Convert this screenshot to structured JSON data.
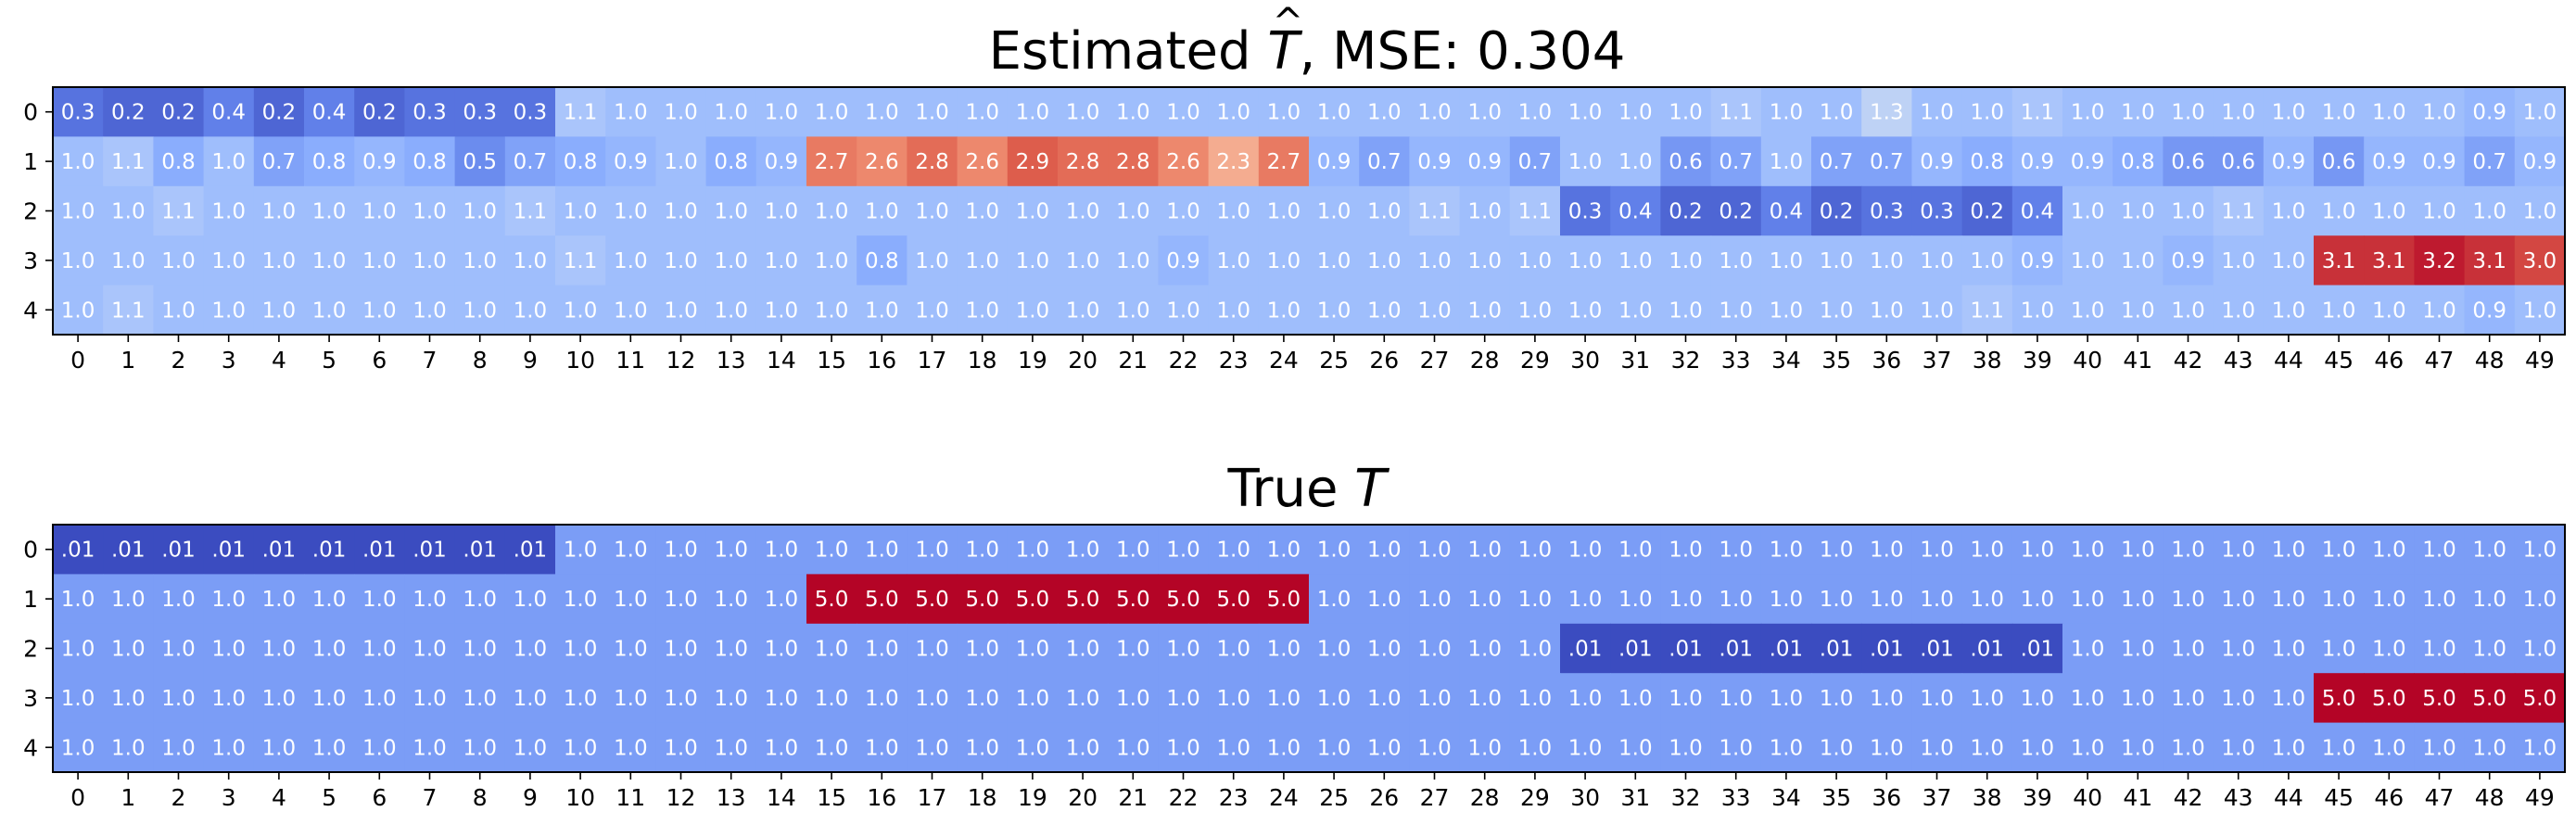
{
  "chart_data": [
    {
      "type": "heatmap",
      "title_prefix": "Estimated",
      "title_symbol": "T",
      "title_hat": "^",
      "title_suffix": ", MSE: 0.304",
      "y_tick_labels": [
        "0",
        "1",
        "2",
        "3",
        "4"
      ],
      "x_tick_labels": [
        "0",
        "1",
        "2",
        "3",
        "4",
        "5",
        "6",
        "7",
        "8",
        "9",
        "10",
        "11",
        "12",
        "13",
        "14",
        "15",
        "16",
        "17",
        "18",
        "19",
        "20",
        "21",
        "22",
        "23",
        "24",
        "25",
        "26",
        "27",
        "28",
        "29",
        "30",
        "31",
        "32",
        "33",
        "34",
        "35",
        "36",
        "37",
        "38",
        "39",
        "40",
        "41",
        "42",
        "43",
        "44",
        "45",
        "46",
        "47",
        "48",
        "49"
      ],
      "colormap": "coolwarm",
      "color_range": [
        0.0,
        3.3
      ],
      "values": [
        [
          0.3,
          0.2,
          0.2,
          0.4,
          0.2,
          0.4,
          0.2,
          0.3,
          0.3,
          0.3,
          1.1,
          1.0,
          1.0,
          1.0,
          1.0,
          1.0,
          1.0,
          1.0,
          1.0,
          1.0,
          1.0,
          1.0,
          1.0,
          1.0,
          1.0,
          1.0,
          1.0,
          1.0,
          1.0,
          1.0,
          1.0,
          1.0,
          1.0,
          1.1,
          1.0,
          1.0,
          1.3,
          1.0,
          1.0,
          1.1,
          1.0,
          1.0,
          1.0,
          1.0,
          1.0,
          1.0,
          1.0,
          1.0,
          0.9,
          1.0
        ],
        [
          1.0,
          1.1,
          0.8,
          1.0,
          0.7,
          0.8,
          0.9,
          0.8,
          0.5,
          0.7,
          0.8,
          0.9,
          1.0,
          0.8,
          0.9,
          2.7,
          2.6,
          2.8,
          2.6,
          2.9,
          2.8,
          2.8,
          2.6,
          2.3,
          2.7,
          0.9,
          0.7,
          0.9,
          0.9,
          0.7,
          1.0,
          1.0,
          0.6,
          0.7,
          1.0,
          0.7,
          0.7,
          0.9,
          0.8,
          0.9,
          0.9,
          0.8,
          0.6,
          0.6,
          0.9,
          0.6,
          0.9,
          0.9,
          0.7,
          0.9
        ],
        [
          1.0,
          1.0,
          1.1,
          1.0,
          1.0,
          1.0,
          1.0,
          1.0,
          1.0,
          1.1,
          1.0,
          1.0,
          1.0,
          1.0,
          1.0,
          1.0,
          1.0,
          1.0,
          1.0,
          1.0,
          1.0,
          1.0,
          1.0,
          1.0,
          1.0,
          1.0,
          1.0,
          1.1,
          1.0,
          1.1,
          0.3,
          0.4,
          0.2,
          0.2,
          0.4,
          0.2,
          0.3,
          0.3,
          0.2,
          0.4,
          1.0,
          1.0,
          1.0,
          1.1,
          1.0,
          1.0,
          1.0,
          1.0,
          1.0,
          1.0
        ],
        [
          1.0,
          1.0,
          1.0,
          1.0,
          1.0,
          1.0,
          1.0,
          1.0,
          1.0,
          1.0,
          1.1,
          1.0,
          1.0,
          1.0,
          1.0,
          1.0,
          0.8,
          1.0,
          1.0,
          1.0,
          1.0,
          1.0,
          0.9,
          1.0,
          1.0,
          1.0,
          1.0,
          1.0,
          1.0,
          1.0,
          1.0,
          1.0,
          1.0,
          1.0,
          1.0,
          1.0,
          1.0,
          1.0,
          1.0,
          0.9,
          1.0,
          1.0,
          0.9,
          1.0,
          1.0,
          3.1,
          3.1,
          3.2,
          3.1,
          3.0
        ],
        [
          1.0,
          1.1,
          1.0,
          1.0,
          1.0,
          1.0,
          1.0,
          1.0,
          1.0,
          1.0,
          1.0,
          1.0,
          1.0,
          1.0,
          1.0,
          1.0,
          1.0,
          1.0,
          1.0,
          1.0,
          1.0,
          1.0,
          1.0,
          1.0,
          1.0,
          1.0,
          1.0,
          1.0,
          1.0,
          1.0,
          1.0,
          1.0,
          1.0,
          1.0,
          1.0,
          1.0,
          1.0,
          1.0,
          1.1,
          1.0,
          1.0,
          1.0,
          1.0,
          1.0,
          1.0,
          1.0,
          1.0,
          1.0,
          0.9,
          1.0
        ]
      ]
    },
    {
      "type": "heatmap",
      "title_prefix": "True",
      "title_symbol": "T",
      "title_hat": "",
      "title_suffix": "",
      "y_tick_labels": [
        "0",
        "1",
        "2",
        "3",
        "4"
      ],
      "x_tick_labels": [
        "0",
        "1",
        "2",
        "3",
        "4",
        "5",
        "6",
        "7",
        "8",
        "9",
        "10",
        "11",
        "12",
        "13",
        "14",
        "15",
        "16",
        "17",
        "18",
        "19",
        "20",
        "21",
        "22",
        "23",
        "24",
        "25",
        "26",
        "27",
        "28",
        "29",
        "30",
        "31",
        "32",
        "33",
        "34",
        "35",
        "36",
        "37",
        "38",
        "39",
        "40",
        "41",
        "42",
        "43",
        "44",
        "45",
        "46",
        "47",
        "48",
        "49"
      ],
      "colormap": "coolwarm",
      "color_range": [
        0.01,
        5.0
      ],
      "values": [
        [
          0.01,
          0.01,
          0.01,
          0.01,
          0.01,
          0.01,
          0.01,
          0.01,
          0.01,
          0.01,
          1.0,
          1.0,
          1.0,
          1.0,
          1.0,
          1.0,
          1.0,
          1.0,
          1.0,
          1.0,
          1.0,
          1.0,
          1.0,
          1.0,
          1.0,
          1.0,
          1.0,
          1.0,
          1.0,
          1.0,
          1.0,
          1.0,
          1.0,
          1.0,
          1.0,
          1.0,
          1.0,
          1.0,
          1.0,
          1.0,
          1.0,
          1.0,
          1.0,
          1.0,
          1.0,
          1.0,
          1.0,
          1.0,
          1.0,
          1.0
        ],
        [
          1.0,
          1.0,
          1.0,
          1.0,
          1.0,
          1.0,
          1.0,
          1.0,
          1.0,
          1.0,
          1.0,
          1.0,
          1.0,
          1.0,
          1.0,
          5.0,
          5.0,
          5.0,
          5.0,
          5.0,
          5.0,
          5.0,
          5.0,
          5.0,
          5.0,
          1.0,
          1.0,
          1.0,
          1.0,
          1.0,
          1.0,
          1.0,
          1.0,
          1.0,
          1.0,
          1.0,
          1.0,
          1.0,
          1.0,
          1.0,
          1.0,
          1.0,
          1.0,
          1.0,
          1.0,
          1.0,
          1.0,
          1.0,
          1.0,
          1.0
        ],
        [
          1.0,
          1.0,
          1.0,
          1.0,
          1.0,
          1.0,
          1.0,
          1.0,
          1.0,
          1.0,
          1.0,
          1.0,
          1.0,
          1.0,
          1.0,
          1.0,
          1.0,
          1.0,
          1.0,
          1.0,
          1.0,
          1.0,
          1.0,
          1.0,
          1.0,
          1.0,
          1.0,
          1.0,
          1.0,
          1.0,
          0.01,
          0.01,
          0.01,
          0.01,
          0.01,
          0.01,
          0.01,
          0.01,
          0.01,
          0.01,
          1.0,
          1.0,
          1.0,
          1.0,
          1.0,
          1.0,
          1.0,
          1.0,
          1.0,
          1.0
        ],
        [
          1.0,
          1.0,
          1.0,
          1.0,
          1.0,
          1.0,
          1.0,
          1.0,
          1.0,
          1.0,
          1.0,
          1.0,
          1.0,
          1.0,
          1.0,
          1.0,
          1.0,
          1.0,
          1.0,
          1.0,
          1.0,
          1.0,
          1.0,
          1.0,
          1.0,
          1.0,
          1.0,
          1.0,
          1.0,
          1.0,
          1.0,
          1.0,
          1.0,
          1.0,
          1.0,
          1.0,
          1.0,
          1.0,
          1.0,
          1.0,
          1.0,
          1.0,
          1.0,
          1.0,
          1.0,
          5.0,
          5.0,
          5.0,
          5.0,
          5.0
        ],
        [
          1.0,
          1.0,
          1.0,
          1.0,
          1.0,
          1.0,
          1.0,
          1.0,
          1.0,
          1.0,
          1.0,
          1.0,
          1.0,
          1.0,
          1.0,
          1.0,
          1.0,
          1.0,
          1.0,
          1.0,
          1.0,
          1.0,
          1.0,
          1.0,
          1.0,
          1.0,
          1.0,
          1.0,
          1.0,
          1.0,
          1.0,
          1.0,
          1.0,
          1.0,
          1.0,
          1.0,
          1.0,
          1.0,
          1.0,
          1.0,
          1.0,
          1.0,
          1.0,
          1.0,
          1.0,
          1.0,
          1.0,
          1.0,
          1.0,
          1.0
        ]
      ]
    }
  ]
}
